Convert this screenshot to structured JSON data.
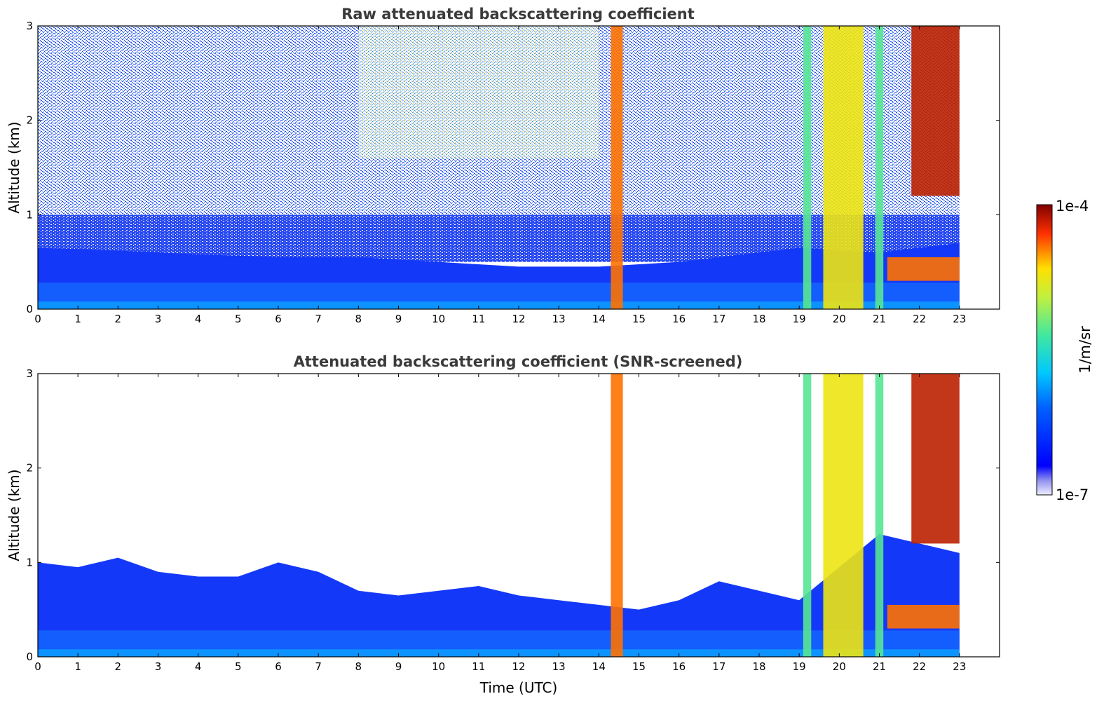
{
  "chart_data": [
    {
      "type": "heatmap",
      "title": "Raw attenuated backscattering coefficient",
      "ylabel": "Altitude (km)",
      "xlabel": "",
      "xlim": [
        0,
        24
      ],
      "ylim": [
        0,
        3
      ],
      "x_ticks": [
        "0",
        "1",
        "2",
        "3",
        "4",
        "5",
        "6",
        "7",
        "8",
        "9",
        "10",
        "11",
        "12",
        "13",
        "14",
        "15",
        "16",
        "17",
        "18",
        "19",
        "20",
        "21",
        "22",
        "23"
      ],
      "y_ticks": [
        "0",
        "1",
        "2",
        "3"
      ],
      "data_end_time": 23,
      "boundary_layer_top_km": [
        [
          0,
          0.65
        ],
        [
          2,
          0.62
        ],
        [
          4,
          0.58
        ],
        [
          6,
          0.55
        ],
        [
          8,
          0.55
        ],
        [
          10,
          0.5
        ],
        [
          12,
          0.45
        ],
        [
          14,
          0.45
        ],
        [
          16,
          0.5
        ],
        [
          18,
          0.6
        ],
        [
          19,
          0.65
        ],
        [
          21,
          0.6
        ],
        [
          23,
          0.7
        ]
      ],
      "features": [
        {
          "label": "plume",
          "t_start": 14.3,
          "t_end": 14.6,
          "alt_top_km": 3.0,
          "level": 0.85
        },
        {
          "label": "plume",
          "t_start": 19.1,
          "t_end": 19.3,
          "alt_top_km": 3.0,
          "level": 0.5
        },
        {
          "label": "plume",
          "t_start": 19.6,
          "t_end": 20.6,
          "alt_top_km": 3.0,
          "level": 0.72
        },
        {
          "label": "plume",
          "t_start": 20.9,
          "t_end": 21.1,
          "alt_top_km": 3.0,
          "level": 0.5
        },
        {
          "label": "layer",
          "t_start": 21.2,
          "t_end": 23.0,
          "alt_bottom_km": 0.3,
          "alt_top_km": 0.55,
          "level": 0.85
        },
        {
          "label": "cloud",
          "t_start": 21.8,
          "t_end": 23.0,
          "alt_bottom_km": 1.2,
          "alt_top_km": 3.0,
          "level": 0.95
        }
      ]
    },
    {
      "type": "heatmap",
      "title": "Attenuated backscattering coefficient (SNR-screened)",
      "ylabel": "Altitude (km)",
      "xlabel": "Time (UTC)",
      "xlim": [
        0,
        24
      ],
      "ylim": [
        0,
        3
      ],
      "x_ticks": [
        "0",
        "1",
        "2",
        "3",
        "4",
        "5",
        "6",
        "7",
        "8",
        "9",
        "10",
        "11",
        "12",
        "13",
        "14",
        "15",
        "16",
        "17",
        "18",
        "19",
        "20",
        "21",
        "22",
        "23"
      ],
      "y_ticks": [
        "0",
        "1",
        "2",
        "3"
      ],
      "data_end_time": 23,
      "boundary_layer_top_km": [
        [
          0,
          1.0
        ],
        [
          1,
          0.95
        ],
        [
          2,
          1.05
        ],
        [
          3,
          0.9
        ],
        [
          4,
          0.85
        ],
        [
          5,
          0.85
        ],
        [
          6,
          1.0
        ],
        [
          7,
          0.9
        ],
        [
          8,
          0.7
        ],
        [
          9,
          0.65
        ],
        [
          10,
          0.7
        ],
        [
          11,
          0.75
        ],
        [
          12,
          0.65
        ],
        [
          13,
          0.6
        ],
        [
          14,
          0.55
        ],
        [
          15,
          0.5
        ],
        [
          16,
          0.6
        ],
        [
          17,
          0.8
        ],
        [
          18,
          0.7
        ],
        [
          19,
          0.6
        ],
        [
          21,
          1.3
        ],
        [
          22,
          1.2
        ],
        [
          23,
          1.1
        ]
      ]
    }
  ],
  "colorbar": {
    "max_label": "1e-4",
    "min_label": "1e-7",
    "unit_label": "1/m/sr"
  }
}
